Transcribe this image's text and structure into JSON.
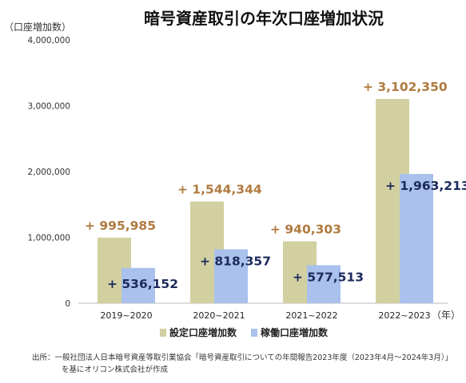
{
  "chart_data": {
    "type": "bar",
    "title": "暗号資産取引の年次口座増加状況",
    "ylabel": "（口座増加数）",
    "x_unit_label": "（年）",
    "categories": [
      "2019~2020",
      "2020~2021",
      "2021~2022",
      "2022~2023"
    ],
    "ylim": [
      0,
      4000000
    ],
    "y_ticks": [
      0,
      1000000,
      2000000,
      3000000,
      4000000
    ],
    "y_tick_labels": [
      "0",
      "1,000,000",
      "2,000,000",
      "3,000,000",
      "4,000,000"
    ],
    "grid": false,
    "legend_position": "bottom",
    "series": [
      {
        "name": "設定口座増加数",
        "color": "#d2d0a0",
        "label_color": "#b07a40",
        "values": [
          995985,
          1544344,
          940303,
          3102350
        ],
        "labels": [
          "+ 995,985",
          "+ 1,544,344",
          "+ 940,303",
          "+ 3,102,350"
        ]
      },
      {
        "name": "稼働口座増加数",
        "color": "#a9c1ec",
        "label_color": "#1c2a5c",
        "values": [
          536152,
          818357,
          577513,
          1963213
        ],
        "labels": [
          "+ 536,152",
          "+ 818,357",
          "+ 577,513",
          "+ 1,963,213"
        ]
      }
    ]
  },
  "source": {
    "line1": "出所：一般社団法人日本暗号資産等取引業協会「暗号資産取引についての年間報告2023年度（2023年4月～2024年3月）」",
    "line2": "を基にオリコン株式会社が作成"
  }
}
